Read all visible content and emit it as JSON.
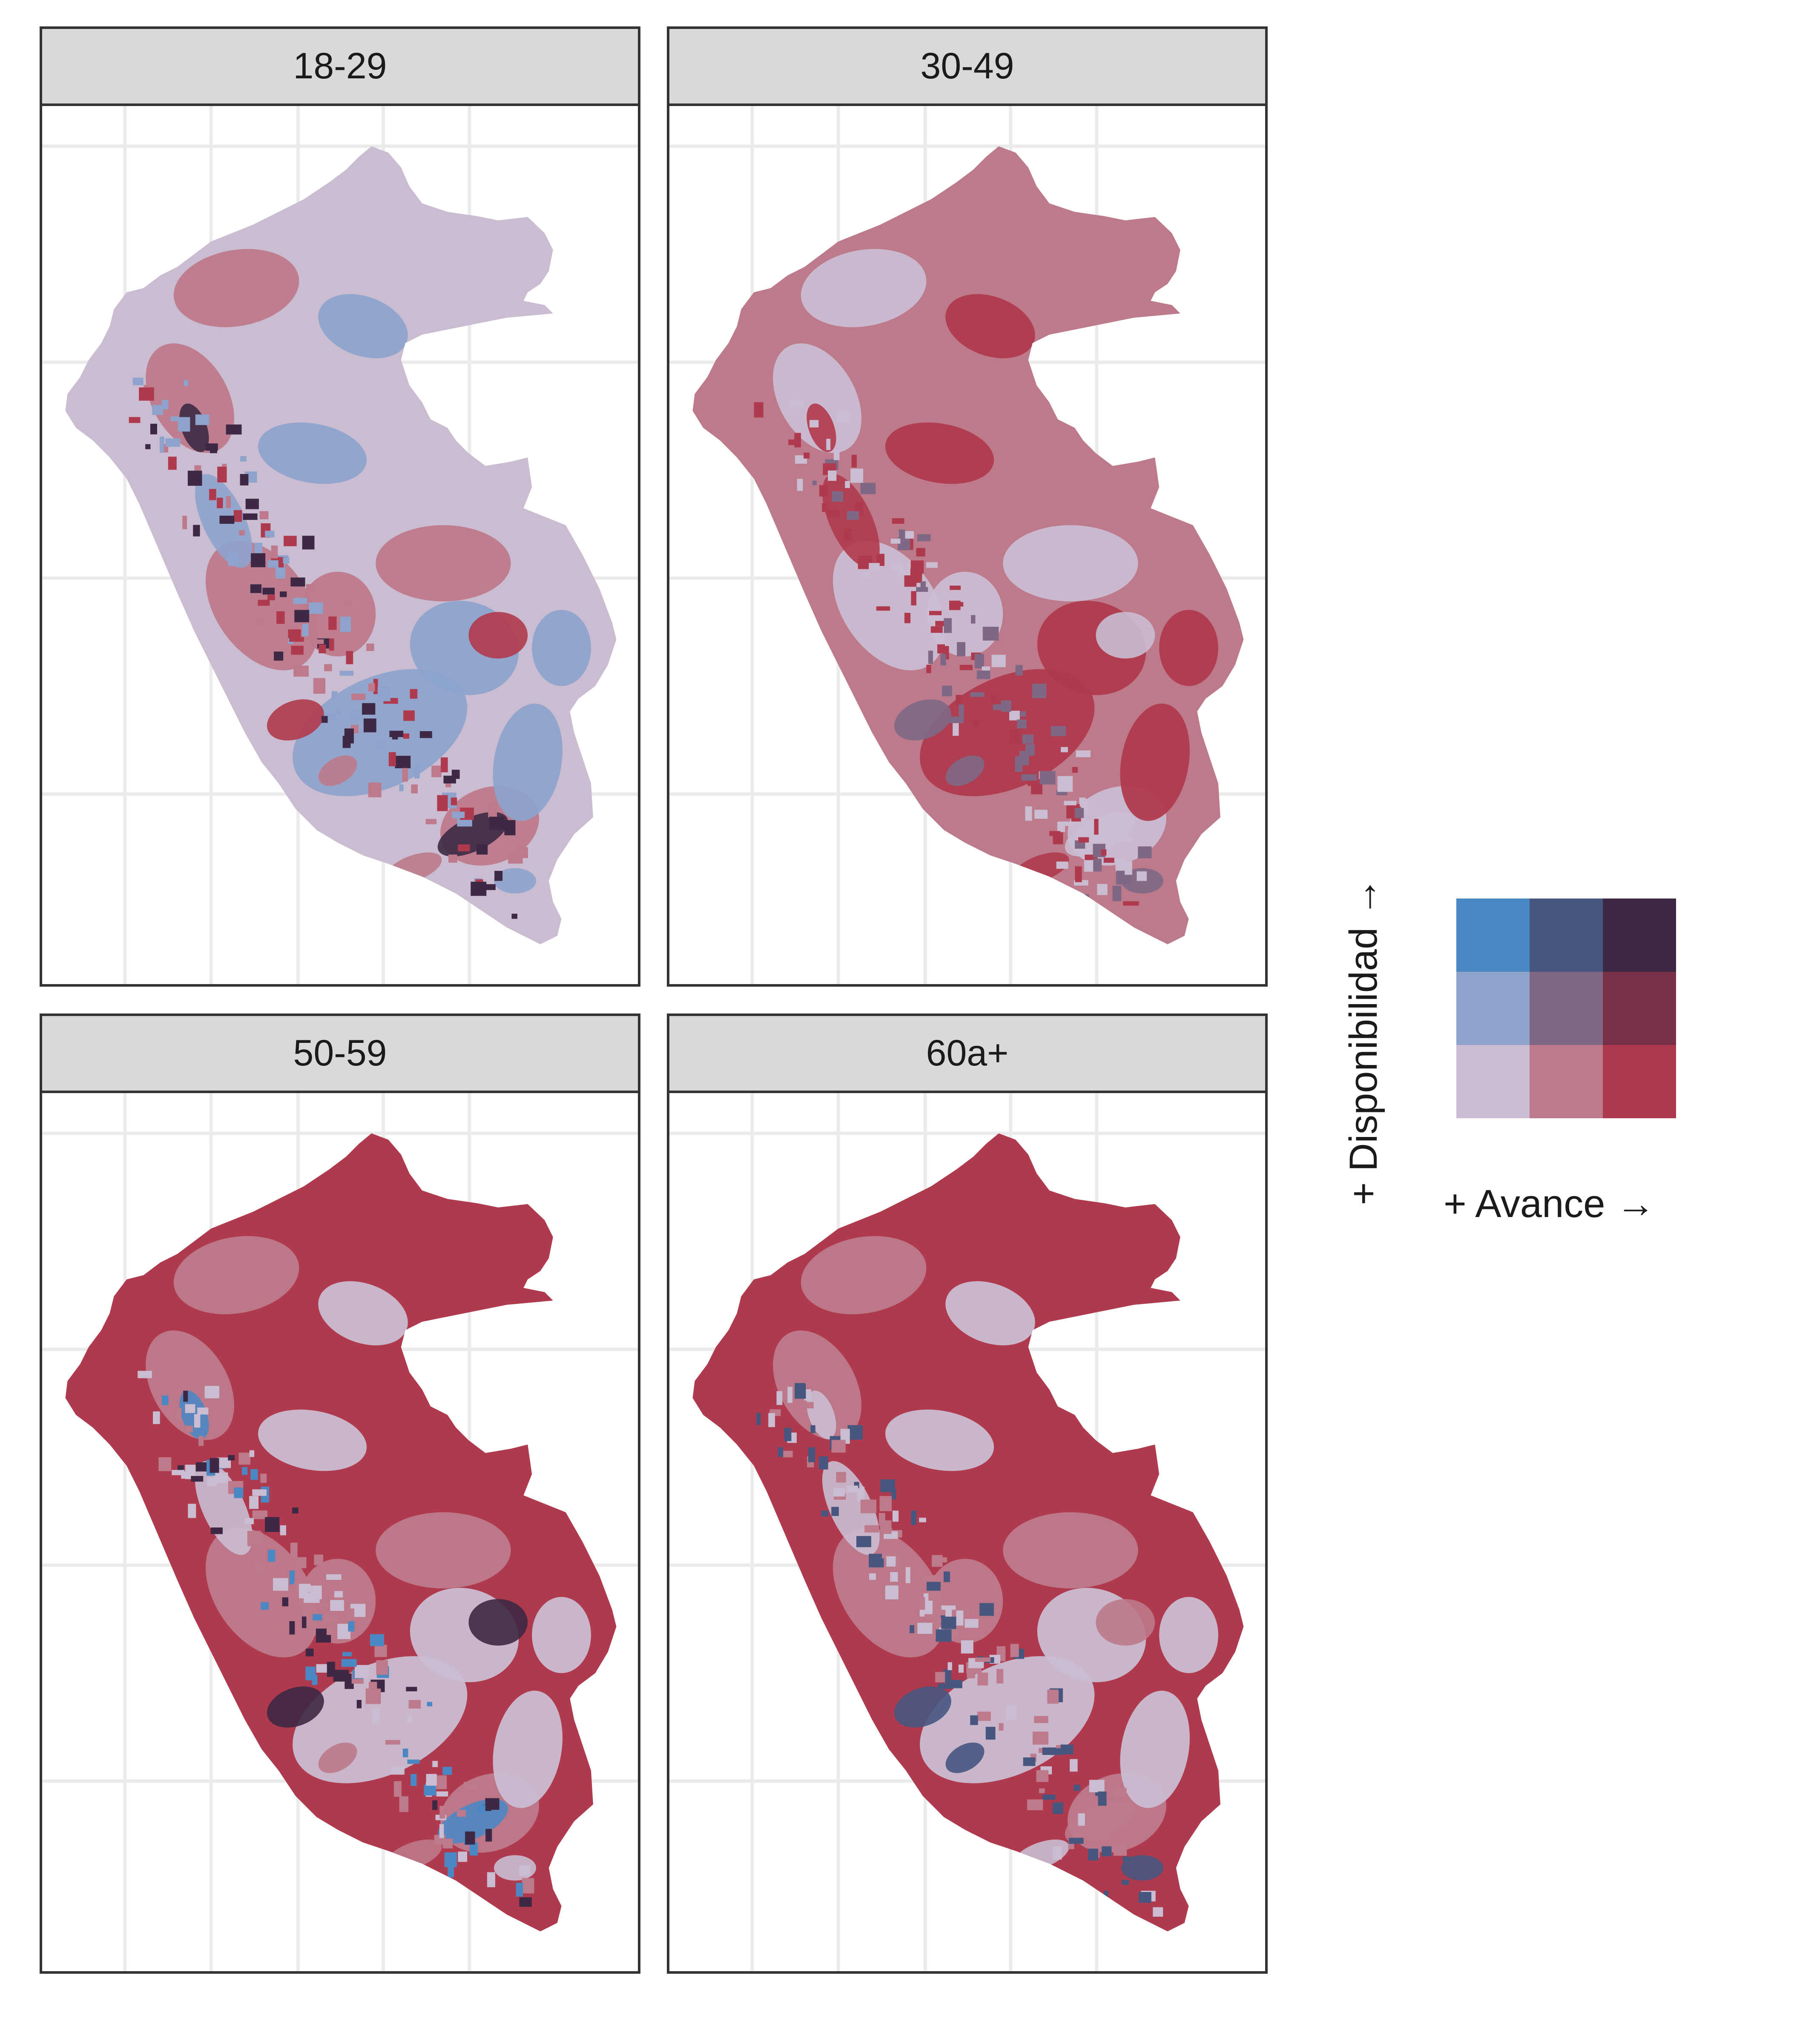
{
  "panels": [
    {
      "label": "18-29",
      "dominant_class": "1-1",
      "accent_classes": [
        "2-1",
        "1-2",
        "3-1",
        "3-3"
      ]
    },
    {
      "label": "30-49",
      "dominant_class": "2-1",
      "accent_classes": [
        "1-1",
        "3-1",
        "2-2"
      ]
    },
    {
      "label": "50-59",
      "dominant_class": "3-1",
      "accent_classes": [
        "2-1",
        "1-1",
        "3-3",
        "1-3"
      ]
    },
    {
      "label": "60a+",
      "dominant_class": "3-1",
      "accent_classes": [
        "2-1",
        "1-1",
        "2-3"
      ]
    }
  ],
  "legend": {
    "x_label": "+ Avance  →",
    "y_label": "+ Disponibilidad  →",
    "grid": [
      [
        "#4a87c3",
        "#47567f",
        "#3d2945"
      ],
      [
        "#8da3cc",
        "#7e6886",
        "#782f48"
      ],
      [
        "#cabdd2",
        "#bd7a8b",
        "#b03a4d"
      ]
    ]
  },
  "colors": {
    "1-1": "#cabdd2",
    "2-1": "#bd7a8b",
    "3-1": "#b03a4d",
    "1-2": "#8da3cc",
    "2-2": "#7e6886",
    "3-2": "#782f48",
    "1-3": "#4a87c3",
    "2-3": "#47567f",
    "3-3": "#3d2945"
  }
}
